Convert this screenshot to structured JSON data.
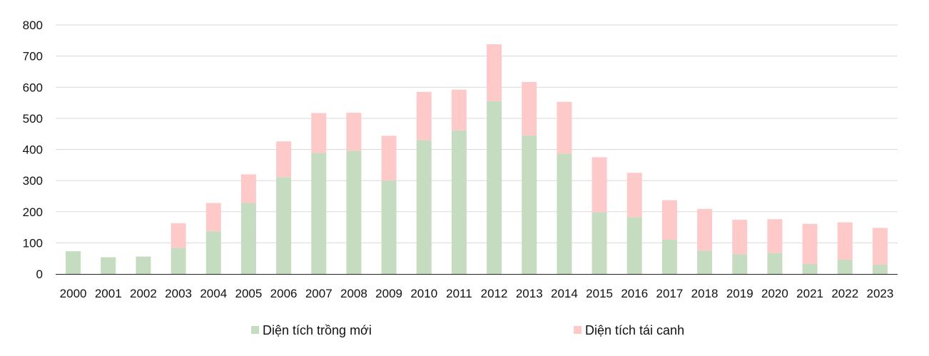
{
  "chart_data": {
    "type": "bar",
    "stacked": true,
    "categories": [
      "2000",
      "2001",
      "2002",
      "2003",
      "2004",
      "2005",
      "2006",
      "2007",
      "2008",
      "2009",
      "2010",
      "2011",
      "2012",
      "2013",
      "2014",
      "2015",
      "2016",
      "2017",
      "2018",
      "2019",
      "2020",
      "2021",
      "2022",
      "2023"
    ],
    "series": [
      {
        "name": "Diện tích trồng mới",
        "color": "#c6dcc0",
        "values": [
          73,
          54,
          56,
          84,
          137,
          228,
          311,
          389,
          396,
          300,
          430,
          461,
          555,
          445,
          387,
          198,
          182,
          110,
          75,
          63,
          68,
          32,
          46,
          30
        ]
      },
      {
        "name": "Diện tích tái canh",
        "color": "#fec9c9",
        "values": [
          0,
          0,
          0,
          79,
          91,
          92,
          115,
          128,
          122,
          144,
          155,
          131,
          183,
          172,
          166,
          177,
          143,
          127,
          134,
          111,
          108,
          129,
          120,
          118
        ]
      }
    ],
    "title": "",
    "xlabel": "",
    "ylabel": "",
    "ylim": [
      0,
      800
    ],
    "yticks": [
      0,
      100,
      200,
      300,
      400,
      500,
      600,
      700,
      800
    ],
    "grid": true,
    "legend_position": "bottom"
  }
}
